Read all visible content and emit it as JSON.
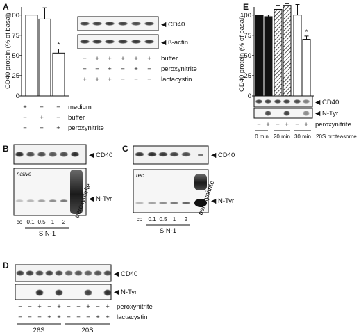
{
  "panel_letters": [
    "A",
    "B",
    "C",
    "D",
    "E"
  ],
  "panelA": {
    "chart": {
      "ylabel": "CD40 protein (% of basal)",
      "yticks": [
        "0",
        "25",
        "50",
        "75",
        "100"
      ],
      "star": "*"
    },
    "cond_labels": [
      "medium",
      "buffer",
      "peroxynitrite"
    ],
    "cond_signs": [
      [
        "+",
        "−",
        "−"
      ],
      [
        "−",
        "+",
        "−"
      ],
      [
        "−",
        "−",
        "+"
      ]
    ],
    "blot_labels": [
      "CD40",
      "ß-actin"
    ],
    "blot_cond_labels": [
      "buffer",
      "peroxynitrite",
      "lactacystin"
    ],
    "blot_signs": [
      [
        "−",
        "+",
        "+",
        "+",
        "+",
        "+"
      ],
      [
        "−",
        "−",
        "+",
        "−",
        "+",
        "−"
      ],
      [
        "+",
        "+",
        "+",
        "−",
        "−",
        "−"
      ]
    ]
  },
  "panelB": {
    "band_label": "CD40",
    "ntyr_label": "N-Tyr",
    "inset": "native",
    "lanes": [
      "co",
      "0.1",
      "0.5",
      "1",
      "2"
    ],
    "group": "SIN-1",
    "rot_label": "peroxynitrite"
  },
  "panelC": {
    "band_label": "CD40",
    "ntyr_label": "N-Tyr",
    "inset": "rec",
    "lanes": [
      "co",
      "0.1",
      "0.5",
      "1",
      "2"
    ],
    "group": "SIN-1",
    "rot_label": "peroxynitrite"
  },
  "panelD": {
    "band_label": "CD40",
    "ntyr_label": "N-Tyr",
    "cond_labels": [
      "peroxynitrite",
      "lactacystin"
    ],
    "signs": [
      [
        "−",
        "−",
        "+",
        "−",
        "+",
        "−",
        "−",
        "+",
        "−",
        "+"
      ],
      [
        "−",
        "−",
        "−",
        "+",
        "+",
        "−",
        "−",
        "−",
        "+",
        "+"
      ]
    ],
    "groups": [
      "26S",
      "20S"
    ]
  },
  "panelE": {
    "chart": {
      "ylabel": "CD40 protein (% of basal)",
      "yticks": [
        "0",
        "25",
        "50",
        "75",
        "100"
      ],
      "star": "*"
    },
    "band_label": "CD40",
    "ntyr_label": "N-Tyr",
    "cond_label": "peroxynitrite",
    "signs": [
      "−",
      "+",
      "−",
      "+",
      "−",
      "+"
    ],
    "times": [
      "0 min",
      "20 min",
      "30 min"
    ],
    "group_label": "20S proteasome"
  },
  "chart_data": [
    {
      "type": "bar",
      "panel": "A",
      "categories": [
        "medium",
        "buffer",
        "peroxynitrite"
      ],
      "values": [
        100,
        95,
        53
      ],
      "errors": [
        0,
        14,
        5
      ],
      "significant": [
        false,
        false,
        true
      ],
      "ylabel": "CD40 protein (% of basal)",
      "ylim": [
        0,
        115
      ],
      "yticks": [
        0,
        25,
        50,
        75,
        100
      ]
    },
    {
      "type": "bar",
      "panel": "E",
      "categories": [
        "0 min −",
        "0 min +",
        "20 min −",
        "20 min +",
        "30 min −",
        "30 min +"
      ],
      "values": [
        100,
        98,
        107,
        112,
        100,
        70
      ],
      "errors": [
        0,
        2,
        5,
        2,
        13,
        4
      ],
      "fill": [
        "solid",
        "solid",
        "hatched",
        "hatched",
        "open",
        "open"
      ],
      "significant": [
        false,
        false,
        false,
        false,
        false,
        true
      ],
      "ylabel": "CD40 protein (% of basal)",
      "ylim": [
        0,
        115
      ],
      "yticks": [
        0,
        25,
        50,
        75,
        100
      ]
    }
  ]
}
